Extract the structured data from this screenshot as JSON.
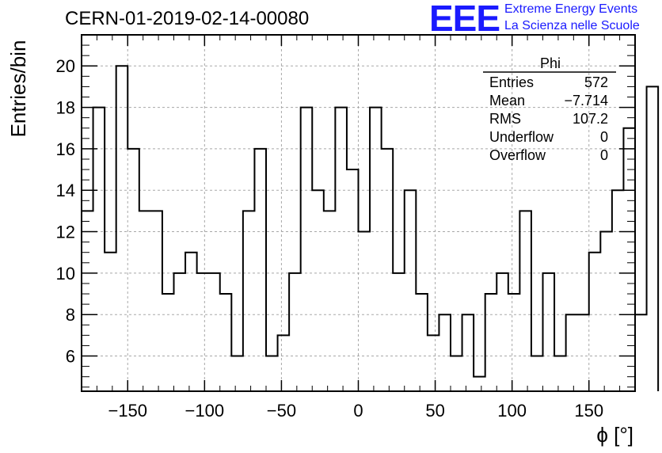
{
  "header": {
    "title": "CERN-01-2019-02-14-00080",
    "logo": "EEE",
    "subtitle_line1": "Extreme Energy Events",
    "subtitle_line2": "La Scienza nelle Scuole",
    "logo_color": "#1a1aff"
  },
  "stats": {
    "name": "Phi",
    "rows": [
      {
        "label": "Entries",
        "value": "572"
      },
      {
        "label": "Mean",
        "value": "−7.714"
      },
      {
        "label": "RMS",
        "value": "107.2"
      },
      {
        "label": "Underflow",
        "value": "0"
      },
      {
        "label": "Overflow",
        "value": "0"
      }
    ]
  },
  "chart_data": {
    "type": "histogram",
    "xlabel": "ϕ [°]",
    "ylabel": "Entries/bin",
    "xlim": [
      -180,
      180
    ],
    "ylim": [
      4.3,
      21.5
    ],
    "grid": true,
    "bin_edges_start": -180,
    "bin_width": 7.5,
    "values": [
      13,
      18,
      11,
      20,
      16,
      13,
      13,
      9,
      10,
      11,
      10,
      10,
      9,
      6,
      13,
      16,
      6,
      7,
      10,
      18,
      14,
      13,
      18,
      15,
      12,
      18,
      16,
      10,
      14,
      9,
      7,
      8,
      6,
      8,
      5,
      9,
      10,
      9,
      13,
      6,
      10,
      6,
      8,
      8,
      11,
      12,
      14,
      17,
      8,
      19
    ],
    "xticks": [
      -150,
      -100,
      -50,
      0,
      50,
      100,
      150
    ],
    "xtick_labels": [
      "−150",
      "−100",
      "−50",
      "0",
      "50",
      "100",
      "150"
    ],
    "yticks": [
      6,
      8,
      10,
      12,
      14,
      16,
      18,
      20
    ],
    "ytick_labels": [
      "6",
      "8",
      "10",
      "12",
      "14",
      "16",
      "18",
      "20"
    ],
    "line_color": "#000000",
    "grid_color": "#a8a8a8"
  }
}
